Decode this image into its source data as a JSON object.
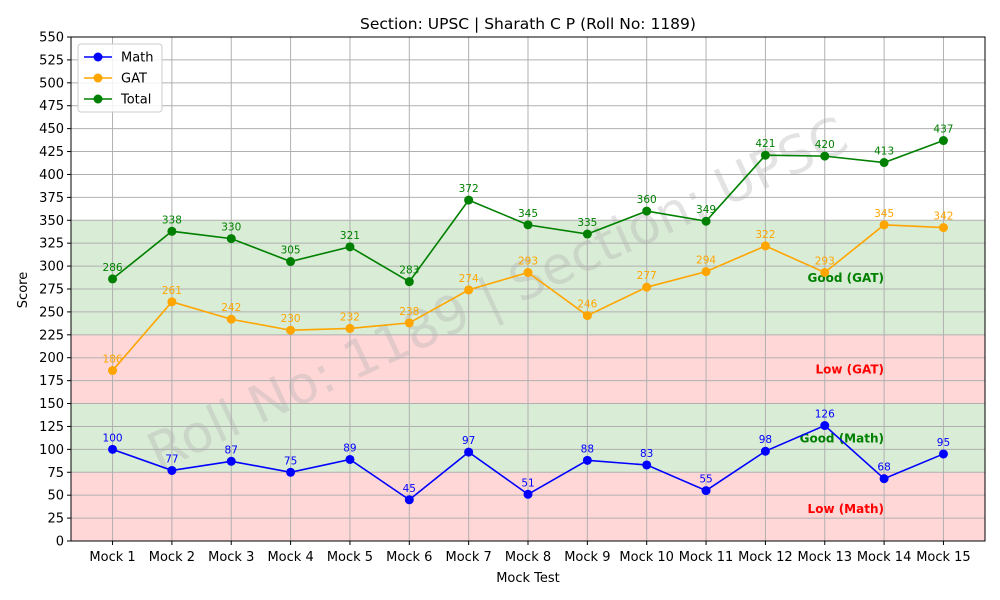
{
  "chart_data": {
    "type": "line",
    "title": "Section: UPSC | Sharath C P (Roll No: 1189)",
    "xlabel": "Mock Test",
    "ylabel": "Score",
    "ylim": [
      0,
      550
    ],
    "ytick_step": 25,
    "grid": true,
    "legend_placement": "top-left",
    "categories": [
      "Mock 1",
      "Mock 2",
      "Mock 3",
      "Mock 4",
      "Mock 5",
      "Mock 6",
      "Mock 7",
      "Mock 8",
      "Mock 9",
      "Mock 10",
      "Mock 11",
      "Mock 12",
      "Mock 13",
      "Mock 14",
      "Mock 15"
    ],
    "series": [
      {
        "name": "Math",
        "color": "#0000ff",
        "values": [
          100,
          77,
          87,
          75,
          89,
          45,
          97,
          51,
          88,
          83,
          55,
          98,
          126,
          68,
          95
        ]
      },
      {
        "name": "GAT",
        "color": "#ffa500",
        "values": [
          186,
          261,
          242,
          230,
          232,
          238,
          274,
          293,
          246,
          277,
          294,
          322,
          293,
          345,
          342
        ]
      },
      {
        "name": "Total",
        "color": "#008000",
        "values": [
          286,
          338,
          330,
          305,
          321,
          283,
          372,
          345,
          335,
          360,
          349,
          421,
          420,
          413,
          437
        ]
      }
    ],
    "bands": [
      {
        "from": 0,
        "to": 75,
        "color": "#ffd7d7",
        "label": "Low (Math)",
        "label_color": "#ff0000",
        "label_y": 35
      },
      {
        "from": 75,
        "to": 150,
        "color": "#d9ecd5",
        "label": "Good (Math)",
        "label_color": "#008000",
        "label_y": 112
      },
      {
        "from": 150,
        "to": 225,
        "color": "#ffd7d7",
        "label": "Low (GAT)",
        "label_color": "#ff0000",
        "label_y": 187
      },
      {
        "from": 225,
        "to": 350,
        "color": "#d9ecd5",
        "label": "Good (GAT)",
        "label_color": "#008000",
        "label_y": 287
      }
    ],
    "watermark": "Roll No: 1189 | Section: UPSC"
  }
}
